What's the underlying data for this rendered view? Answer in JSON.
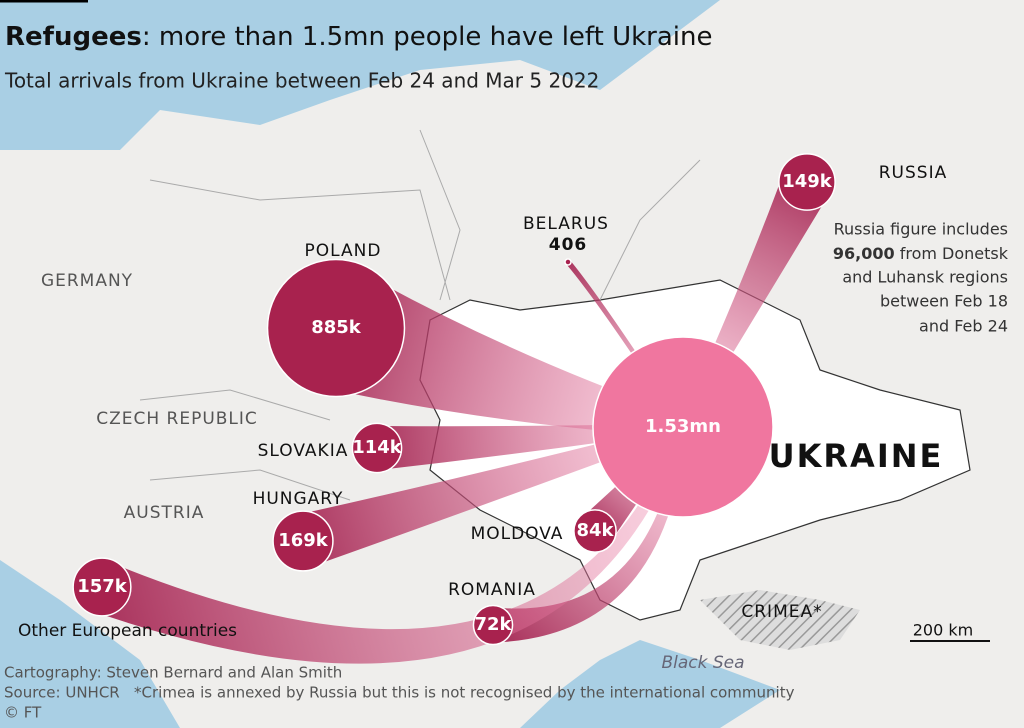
{
  "header": {
    "title_bold": "Refugees",
    "title_rest": ": more than 1.5mn people have left Ukraine",
    "subtitle": "Total arrivals from Ukraine between Feb 24 and Mar 5 2022"
  },
  "origin": {
    "name": "UKRAINE",
    "label": "1.53mn",
    "value": 1530000
  },
  "destinations": [
    {
      "name": "POLAND",
      "label": "885k",
      "value": 885000
    },
    {
      "name": "SLOVAKIA",
      "label": "114k",
      "value": 114000
    },
    {
      "name": "HUNGARY",
      "label": "169k",
      "value": 169000
    },
    {
      "name": "MOLDOVA",
      "label": "84k",
      "value": 84000
    },
    {
      "name": "ROMANIA",
      "label": "72k",
      "value": 72000
    },
    {
      "name": "Other European countries",
      "label": "157k",
      "value": 157000
    },
    {
      "name": "RUSSIA",
      "label": "149k",
      "value": 149000
    },
    {
      "name": "BELARUS",
      "label": "406",
      "value": 406
    }
  ],
  "note": {
    "line1": "Russia figure includes",
    "line2_bold": "96,000",
    "line2_rest": " from Donetsk",
    "line3": "and Luhansk regions",
    "line4": "between Feb 18",
    "line5": "and Feb 24"
  },
  "places": [
    "GERMANY",
    "CZECH REPUBLIC",
    "AUSTRIA",
    "CRIMEA*",
    "Black Sea"
  ],
  "scale": "200 km",
  "footer": [
    "Cartography: Steven Bernard and Alan Smith",
    "Source: UNHCR   *Crimea is annexed by Russia but this is not recognised by the international community",
    "© FT"
  ]
}
